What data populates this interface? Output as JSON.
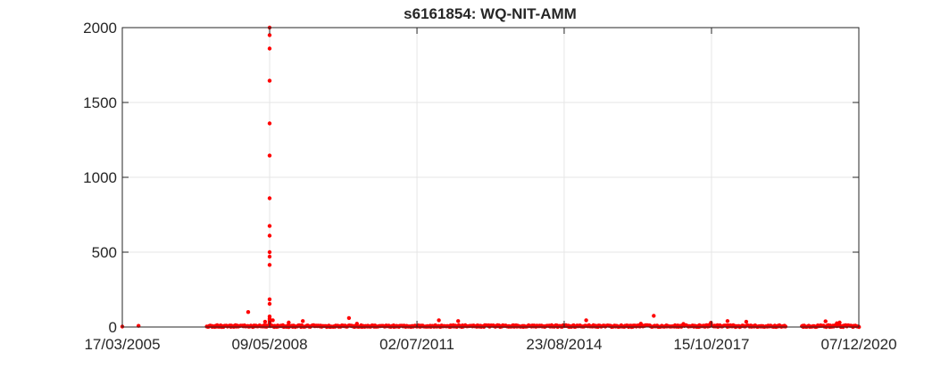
{
  "chart_data": {
    "type": "scatter",
    "title": "s6161854: WQ-NIT-AMM",
    "xlabel": "",
    "ylabel": "",
    "x_type": "date",
    "xlim": [
      "17/03/2005",
      "07/12/2020"
    ],
    "ylim": [
      0,
      2000
    ],
    "grid": true,
    "marker_color": "#ff0000",
    "y_ticks": [
      0,
      500,
      1000,
      1500,
      2000
    ],
    "x_ticks": [
      "17/03/2005",
      "09/05/2008",
      "02/07/2011",
      "23/08/2014",
      "15/10/2017",
      "07/12/2020"
    ],
    "spike": {
      "x": "09/05/2008",
      "values": [
        2000,
        1950,
        1860,
        1645,
        1360,
        1145,
        860,
        675,
        610,
        500,
        470,
        415,
        185,
        155,
        70,
        55,
        45,
        35,
        25,
        15
      ]
    },
    "notable_points": [
      {
        "x": "17/03/2005",
        "y": 3
      },
      {
        "x": "22/07/2005",
        "y": 8
      },
      {
        "x": "24/11/2007",
        "y": 100
      },
      {
        "x": "03/04/2008",
        "y": 35
      },
      {
        "x": "03/06/2008",
        "y": 45
      },
      {
        "x": "05/10/2008",
        "y": 30
      },
      {
        "x": "23/01/2009",
        "y": 40
      },
      {
        "x": "18/01/2010",
        "y": 60
      },
      {
        "x": "21/03/2010",
        "y": 22
      },
      {
        "x": "20/12/2011",
        "y": 45
      },
      {
        "x": "18/05/2012",
        "y": 40
      },
      {
        "x": "11/02/2015",
        "y": 45
      },
      {
        "x": "22/07/2016",
        "y": 75
      },
      {
        "x": "12/04/2016",
        "y": 22
      },
      {
        "x": "10/03/2017",
        "y": 20
      },
      {
        "x": "10/10/2017",
        "y": 28
      },
      {
        "x": "17/02/2018",
        "y": 40
      },
      {
        "x": "13/07/2018",
        "y": 35
      },
      {
        "x": "22/03/2020",
        "y": 38
      },
      {
        "x": "19/06/2020",
        "y": 25
      },
      {
        "x": "10/07/2020",
        "y": 30
      }
    ],
    "baseline": {
      "range": [
        "01/01/2007",
        "07/12/2020"
      ],
      "gaps": [
        [
          "15/05/2019",
          "15/09/2019"
        ]
      ],
      "typical_max": 12
    }
  }
}
